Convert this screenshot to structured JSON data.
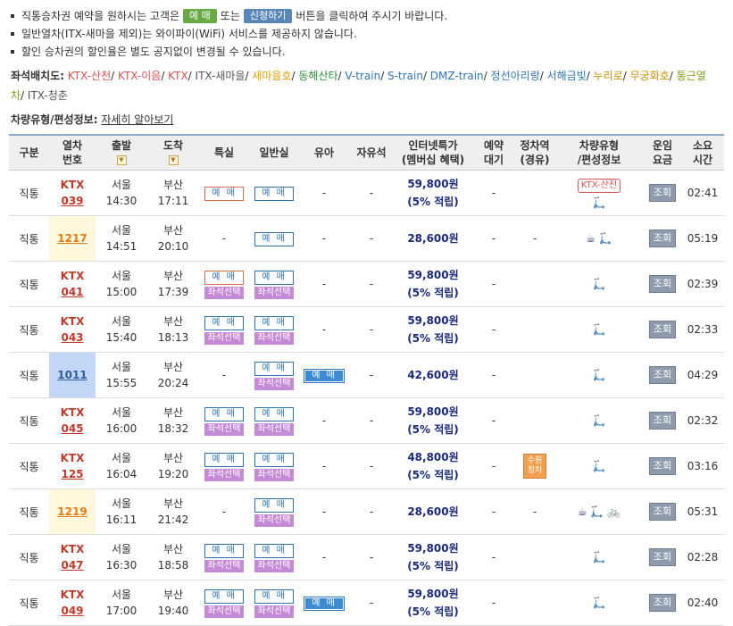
{
  "notices": [
    {
      "before": "직통승차권 예약을 원하시는 고객은",
      "btn1": "예 매",
      "mid": "또는",
      "btn2": "신청하기",
      "after": "버튼을 클릭하여 주시기 바랍니다."
    },
    {
      "text": "일반열차(ITX-새마을 제외)는 와이파이(WiFi) 서비스를 제공하지 않습니다."
    },
    {
      "text": "할인 승차권의 할인율은 별도 공지없이 변경될 수 있습니다."
    }
  ],
  "seat_layout": {
    "label": "좌석배치도:",
    "links": [
      {
        "text": "KTX-산천",
        "color": "#d9534f"
      },
      {
        "text": "KTX-이음",
        "color": "#d9534f"
      },
      {
        "text": "KTX",
        "color": "#d9534f"
      },
      {
        "text": "ITX-새마을",
        "color": "#555555"
      },
      {
        "text": "새마을호",
        "color": "#e0a000"
      },
      {
        "text": "동해산타",
        "color": "#2e8b3a"
      },
      {
        "text": "V-train",
        "color": "#2e75b5"
      },
      {
        "text": "S-train",
        "color": "#2e75b5"
      },
      {
        "text": "DMZ-train",
        "color": "#2e75b5"
      },
      {
        "text": "정선아리랑",
        "color": "#2e75b5"
      },
      {
        "text": "서해금빛",
        "color": "#2e75b5"
      },
      {
        "text": "누리로",
        "color": "#c98d00"
      },
      {
        "text": "무궁화호",
        "color": "#c98d00"
      },
      {
        "text": "통근열차",
        "color": "#7aa012"
      },
      {
        "text": "ITX-청춘",
        "color": "#555555"
      }
    ]
  },
  "vehicle_info": {
    "label": "차량유형/편성정보:",
    "link": "자세히 알아보기"
  },
  "headers": {
    "type": "구분",
    "train_no": [
      "열차",
      "번호"
    ],
    "dep": "출발",
    "arr": "도착",
    "special": "특실",
    "general": "일반실",
    "infant": "유아",
    "free": "자유석",
    "internet": [
      "인터넷특가",
      "(멤버십 혜택)"
    ],
    "waitlist": [
      "예약",
      "대기"
    ],
    "stop": [
      "정차역",
      "(경유)"
    ],
    "vehicle": [
      "차량유형",
      "/편성정보"
    ],
    "fare": [
      "운임",
      "요금"
    ],
    "duration": [
      "소요",
      "시간"
    ]
  },
  "rows": [
    {
      "type": "직통",
      "kind": "KTX",
      "num": "039",
      "dep_st": "서울",
      "dep_t": "14:30",
      "arr_st": "부산",
      "arr_t": "17:11",
      "special": "reserve_red",
      "special_seat": false,
      "general": "reserve",
      "general_seat": false,
      "infant": "-",
      "free": "-",
      "price": "59,800원",
      "discount": "(5% 적립)",
      "wait": "-",
      "stop": "",
      "vehicle_badge": "KTX-산천",
      "vehicle_icons": "🛴",
      "fare": "조회",
      "duration": "02:41"
    },
    {
      "type": "직통",
      "kind": "MUG",
      "num": "1217",
      "dep_st": "서울",
      "dep_t": "14:51",
      "arr_st": "부산",
      "arr_t": "20:10",
      "special": "-",
      "special_seat": false,
      "general": "reserve",
      "general_seat": false,
      "infant": "-",
      "free": "-",
      "price": "28,600원",
      "discount": "",
      "wait": "-",
      "stop": "-",
      "vehicle_badge": "",
      "vehicle_icons": "☕ 🛴",
      "fare": "조회",
      "duration": "05:19"
    },
    {
      "type": "직통",
      "kind": "KTX",
      "num": "041",
      "dep_st": "서울",
      "dep_t": "15:00",
      "arr_st": "부산",
      "arr_t": "17:39",
      "special": "reserve_red",
      "special_seat": true,
      "general": "reserve",
      "general_seat": true,
      "infant": "-",
      "free": "-",
      "price": "59,800원",
      "discount": "(5% 적립)",
      "wait": "-",
      "stop": "",
      "vehicle_badge": "",
      "vehicle_icons": "🛴",
      "fare": "조회",
      "duration": "02:39"
    },
    {
      "type": "직통",
      "kind": "KTX",
      "num": "043",
      "dep_st": "서울",
      "dep_t": "15:40",
      "arr_st": "부산",
      "arr_t": "18:13",
      "special": "reserve",
      "special_seat": true,
      "general": "reserve",
      "general_seat": true,
      "infant": "-",
      "free": "-",
      "price": "59,800원",
      "discount": "(5% 적립)",
      "wait": "-",
      "stop": "",
      "vehicle_badge": "",
      "vehicle_icons": "🛴",
      "fare": "조회",
      "duration": "02:33"
    },
    {
      "type": "직통",
      "kind": "ITX",
      "num": "1011",
      "dep_st": "서울",
      "dep_t": "15:55",
      "arr_st": "부산",
      "arr_t": "20:24",
      "special": "-",
      "special_seat": false,
      "general": "reserve",
      "general_seat": true,
      "infant": "reserve_filled",
      "free": "-",
      "price": "42,600원",
      "discount": "",
      "wait": "-",
      "stop": "",
      "vehicle_badge": "",
      "vehicle_icons": "🛴",
      "fare": "조회",
      "duration": "04:29"
    },
    {
      "type": "직통",
      "kind": "KTX",
      "num": "045",
      "dep_st": "서울",
      "dep_t": "16:00",
      "arr_st": "부산",
      "arr_t": "18:32",
      "special": "reserve",
      "special_seat": true,
      "general": "reserve",
      "general_seat": true,
      "infant": "-",
      "free": "-",
      "price": "59,800원",
      "discount": "(5% 적립)",
      "wait": "-",
      "stop": "",
      "vehicle_badge": "",
      "vehicle_icons": "🛴",
      "fare": "조회",
      "duration": "02:32"
    },
    {
      "type": "직통",
      "kind": "KTX",
      "num": "125",
      "dep_st": "서울",
      "dep_t": "16:04",
      "arr_st": "부산",
      "arr_t": "19:20",
      "special": "reserve",
      "special_seat": true,
      "general": "reserve",
      "general_seat": true,
      "infant": "-",
      "free": "-",
      "price": "48,800원",
      "discount": "(5% 적립)",
      "wait": "-",
      "stop": "수원 정차",
      "vehicle_badge": "",
      "vehicle_icons": "🛴",
      "fare": "조회",
      "duration": "03:16"
    },
    {
      "type": "직통",
      "kind": "MUG",
      "num": "1219",
      "dep_st": "서울",
      "dep_t": "16:11",
      "arr_st": "부산",
      "arr_t": "21:42",
      "special": "-",
      "special_seat": false,
      "general": "reserve",
      "general_seat": true,
      "infant": "-",
      "free": "-",
      "price": "28,600원",
      "discount": "",
      "wait": "-",
      "stop": "-",
      "vehicle_badge": "",
      "vehicle_icons": "☕ 🛴 🚲",
      "fare": "조회",
      "duration": "05:31"
    },
    {
      "type": "직통",
      "kind": "KTX",
      "num": "047",
      "dep_st": "서울",
      "dep_t": "16:30",
      "arr_st": "부산",
      "arr_t": "18:58",
      "special": "reserve",
      "special_seat": true,
      "general": "reserve",
      "general_seat": true,
      "infant": "-",
      "free": "-",
      "price": "59,800원",
      "discount": "(5% 적립)",
      "wait": "-",
      "stop": "",
      "vehicle_badge": "",
      "vehicle_icons": "🛴",
      "fare": "조회",
      "duration": "02:28"
    },
    {
      "type": "직통",
      "kind": "KTX",
      "num": "049",
      "dep_st": "서울",
      "dep_t": "17:00",
      "arr_st": "부산",
      "arr_t": "19:40",
      "special": "reserve",
      "special_seat": true,
      "general": "reserve",
      "general_seat": true,
      "infant": "reserve_filled",
      "free": "-",
      "price": "59,800원",
      "discount": "(5% 적립)",
      "wait": "-",
      "stop": "",
      "vehicle_badge": "",
      "vehicle_icons": "🛴",
      "fare": "조회",
      "duration": "02:40"
    }
  ],
  "labels": {
    "reserve": "예 매",
    "seat_select": "좌석선택",
    "ktx": "KTX"
  }
}
